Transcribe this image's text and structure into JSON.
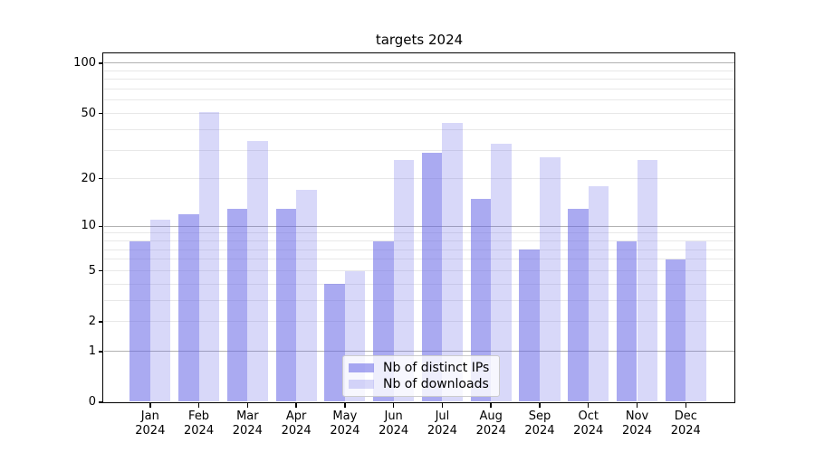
{
  "title": "targets 2024",
  "legend": {
    "items": [
      {
        "label": "Nb of distinct IPs",
        "key": "ips",
        "color": "rgba(100,100,230,0.55)"
      },
      {
        "label": "Nb of downloads",
        "key": "downloads",
        "color": "rgba(100,100,230,0.25)"
      }
    ]
  },
  "colors": {
    "bar_ips": "rgba(100,100,230,0.55)",
    "bar_ips_flat": "#aaaaf1",
    "bar_downloads": "rgba(100,100,230,0.25)",
    "bar_downloads_flat": "#d8d8f9",
    "grid_major": "#b1b1b1",
    "grid_minor": "#e8e8e8",
    "axis": "#000000",
    "legend_border": "#cccccc"
  },
  "axes": {
    "y_scale": "log1p",
    "y_tick_labels": [
      0,
      1,
      2,
      5,
      10,
      20,
      50,
      100
    ],
    "y_major_grid": [
      1,
      10,
      100
    ],
    "y_minor_grid": [
      2,
      3,
      4,
      5,
      6,
      7,
      8,
      9,
      20,
      30,
      40,
      50,
      60,
      70,
      80,
      90
    ],
    "x_tick_months": [
      "Jan",
      "Feb",
      "Mar",
      "Apr",
      "May",
      "Jun",
      "Jul",
      "Aug",
      "Sep",
      "Oct",
      "Nov",
      "Dec"
    ],
    "x_tick_year": "2024"
  },
  "chart_data": {
    "type": "bar",
    "title": "targets 2024",
    "categories": [
      "Jan 2024",
      "Feb 2024",
      "Mar 2024",
      "Apr 2024",
      "May 2024",
      "Jun 2024",
      "Jul 2024",
      "Aug 2024",
      "Sep 2024",
      "Oct 2024",
      "Nov 2024",
      "Dec 2024"
    ],
    "series": [
      {
        "name": "Nb of distinct IPs",
        "values": [
          8,
          12,
          13,
          13,
          4,
          8,
          29,
          15,
          7,
          13,
          8,
          6
        ]
      },
      {
        "name": "Nb of downloads",
        "values": [
          11,
          51,
          34,
          17,
          5,
          26,
          44,
          33,
          27,
          18,
          26,
          8
        ]
      }
    ],
    "xlabel": "",
    "ylabel": "",
    "yscale": "log1p",
    "ylim": [
      0,
      115
    ],
    "y_ticks": [
      0,
      1,
      2,
      5,
      10,
      20,
      50,
      100
    ],
    "grid": "horizontal",
    "legend_position": "lower-center"
  }
}
